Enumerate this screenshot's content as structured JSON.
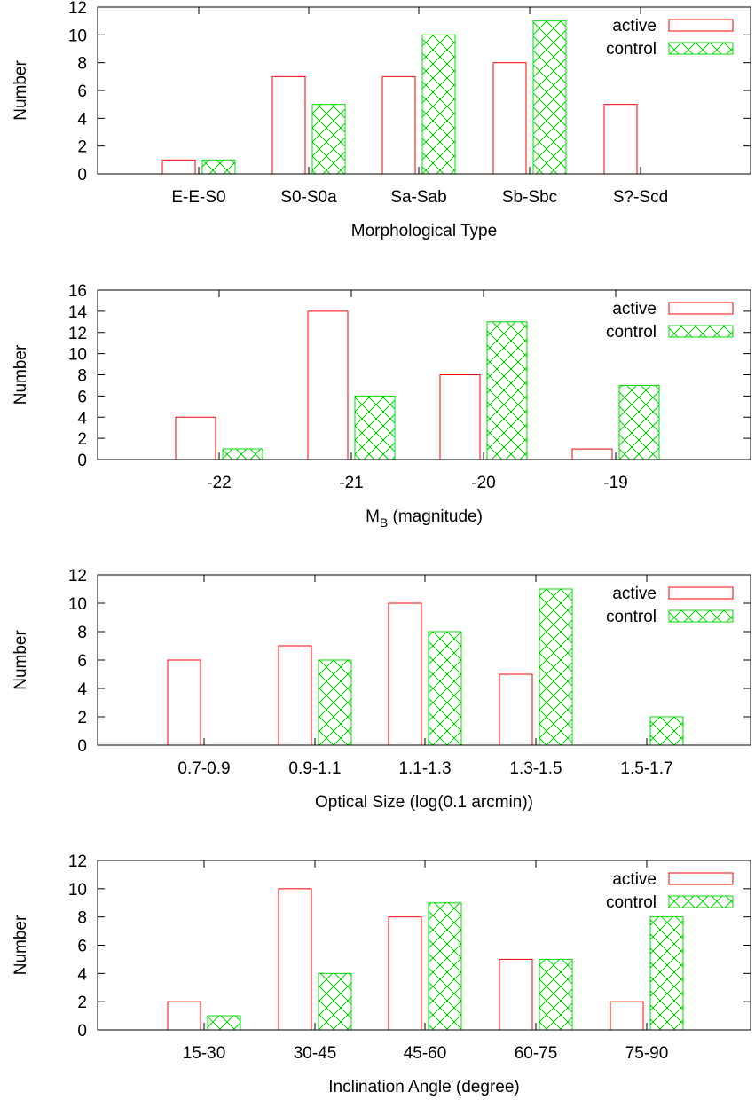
{
  "colors": {
    "active": "#ff0000",
    "control": "#00dd00",
    "axis": "#000000"
  },
  "chart_data": [
    {
      "type": "bar",
      "categories": [
        "E-E-S0",
        "S0-S0a",
        "Sa-Sab",
        "Sb-Sbc",
        "S?-Scd"
      ],
      "xlabel": "Morphological Type",
      "ylabel": "Number",
      "ylim": [
        0,
        12
      ],
      "yticks": [
        "0",
        "2",
        "4",
        "6",
        "8",
        "10",
        "12"
      ],
      "legend_position": "top-right",
      "series": [
        {
          "name": "active",
          "values": [
            1,
            7,
            7,
            8,
            5
          ]
        },
        {
          "name": "control",
          "values": [
            1,
            5,
            10,
            11,
            0
          ]
        }
      ]
    },
    {
      "type": "bar",
      "categories": [
        "-22",
        "-21",
        "-20",
        "-19"
      ],
      "xlabel_main": "M",
      "xlabel_sub": "B",
      "xlabel_rest": " (magnitude)",
      "ylabel": "Number",
      "ylim": [
        0,
        16
      ],
      "yticks": [
        "0",
        "2",
        "4",
        "6",
        "8",
        "10",
        "12",
        "14",
        "16"
      ],
      "legend_position": "top-right",
      "series": [
        {
          "name": "active",
          "values": [
            4,
            14,
            8,
            1
          ]
        },
        {
          "name": "control",
          "values": [
            1,
            6,
            13,
            7
          ]
        }
      ]
    },
    {
      "type": "bar",
      "categories": [
        "0.7-0.9",
        "0.9-1.1",
        "1.1-1.3",
        "1.3-1.5",
        "1.5-1.7"
      ],
      "xlabel": "Optical Size (log(0.1 arcmin))",
      "ylabel": "Number",
      "ylim": [
        0,
        12
      ],
      "yticks": [
        "0",
        "2",
        "4",
        "6",
        "8",
        "10",
        "12"
      ],
      "legend_position": "top-right",
      "series": [
        {
          "name": "active",
          "values": [
            6,
            7,
            10,
            5,
            0
          ]
        },
        {
          "name": "control",
          "values": [
            0,
            6,
            8,
            11,
            2
          ]
        }
      ]
    },
    {
      "type": "bar",
      "categories": [
        "15-30",
        "30-45",
        "45-60",
        "60-75",
        "75-90"
      ],
      "xlabel": "Inclination Angle (degree)",
      "ylabel": "Number",
      "ylim": [
        0,
        12
      ],
      "yticks": [
        "0",
        "2",
        "4",
        "6",
        "8",
        "10",
        "12"
      ],
      "legend_position": "top-right",
      "series": [
        {
          "name": "active",
          "values": [
            2,
            10,
            8,
            5,
            2
          ]
        },
        {
          "name": "control",
          "values": [
            1,
            4,
            9,
            5,
            8
          ]
        }
      ]
    }
  ]
}
